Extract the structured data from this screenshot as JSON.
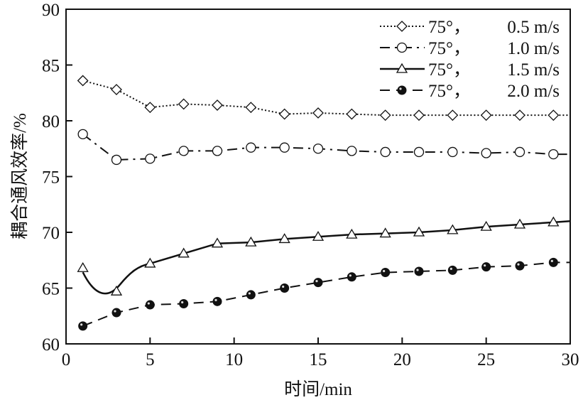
{
  "chart_data": {
    "type": "line",
    "title": "",
    "xlabel": "时间/min",
    "ylabel": "耦合通风效率/%",
    "xlim": [
      0,
      30
    ],
    "ylim": [
      60,
      90
    ],
    "xticks": [
      "0",
      "5",
      "10",
      "15",
      "20",
      "25",
      "30"
    ],
    "yticks": [
      "60",
      "65",
      "70",
      "75",
      "80",
      "85",
      "90"
    ],
    "grid": false,
    "legend_position": "top-right",
    "x": [
      1,
      3,
      5,
      7,
      9,
      11,
      13,
      15,
      17,
      19,
      21,
      23,
      25,
      27,
      29
    ],
    "series": [
      {
        "name": "75°，0.5 m/s",
        "label_angle": "75°，",
        "label_speed": "0.5 m/s",
        "marker": "diamond",
        "line": "dotted",
        "values": [
          83.6,
          82.8,
          81.2,
          81.5,
          81.4,
          81.2,
          80.6,
          80.7,
          80.6,
          80.5,
          80.5,
          80.5,
          80.5,
          80.5,
          80.5
        ]
      },
      {
        "name": "75°，1.0 m/s",
        "label_angle": "75°，",
        "label_speed": "1.0 m/s",
        "marker": "circle-open",
        "line": "dash-dot",
        "values": [
          78.8,
          76.5,
          76.6,
          77.3,
          77.3,
          77.6,
          77.6,
          77.5,
          77.3,
          77.2,
          77.2,
          77.2,
          77.1,
          77.2,
          77.0
        ]
      },
      {
        "name": "75°，1.5 m/s",
        "label_angle": "75°，",
        "label_speed": "1.5 m/s",
        "marker": "triangle",
        "line": "solid",
        "values": [
          66.8,
          64.7,
          67.2,
          68.1,
          69.0,
          69.1,
          69.4,
          69.6,
          69.8,
          69.9,
          70.0,
          70.2,
          70.5,
          70.7,
          70.9
        ]
      },
      {
        "name": "75°，2.0 m/s",
        "label_angle": "75°，",
        "label_speed": "2.0 m/s",
        "marker": "circle-filled",
        "line": "dashed",
        "values": [
          61.6,
          62.8,
          63.5,
          63.6,
          63.8,
          64.4,
          65.0,
          65.5,
          66.0,
          66.4,
          66.5,
          66.6,
          66.9,
          67.0,
          67.3
        ]
      }
    ]
  }
}
